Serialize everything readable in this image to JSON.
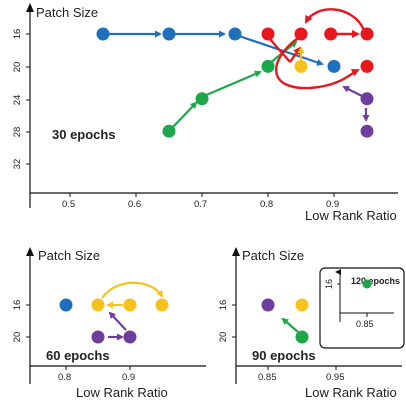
{
  "colors": {
    "blue": "#1f6fbf",
    "red": "#e8171d",
    "green": "#1ca84a",
    "yellow": "#f7c21b",
    "purple": "#6f3d9e",
    "axis": "#111111"
  },
  "panels": {
    "top": {
      "ylabel": "Patch Size",
      "xlabel": "Low Rank Ratio",
      "epochs": "30 epochs",
      "xticks": [
        "0.5",
        "0.6",
        "0.7",
        "0.8",
        "0.9"
      ],
      "yticks": [
        "16",
        "20",
        "24",
        "28",
        "32"
      ]
    },
    "bottom_left": {
      "ylabel": "Patch Size",
      "xlabel": "Low Rank Ratio",
      "epochs": "60 epochs",
      "xticks": [
        "0.8",
        "0.9"
      ],
      "yticks": [
        "16",
        "20"
      ]
    },
    "bottom_right": {
      "ylabel": "Patch Size",
      "xlabel": "Low Rank Ratio",
      "epochs": "90 epochs",
      "xticks": [
        "0.85",
        "0.95"
      ],
      "yticks": [
        "16",
        "20"
      ]
    },
    "inset": {
      "epochs": "120 epochs",
      "xtick": "0.85",
      "ytick": "16"
    }
  },
  "chart_data": [
    {
      "type": "scatter",
      "panel": "30 epochs",
      "xlabel": "Low Rank Ratio",
      "ylabel": "Patch Size",
      "xticks": [
        0.5,
        0.6,
        0.7,
        0.8,
        0.9
      ],
      "yticks": [
        16,
        20,
        24,
        28,
        32
      ],
      "points": [
        {
          "color": "blue",
          "x": 0.55,
          "y": 16
        },
        {
          "color": "blue",
          "x": 0.65,
          "y": 16
        },
        {
          "color": "blue",
          "x": 0.75,
          "y": 16
        },
        {
          "color": "blue",
          "x": 0.9,
          "y": 20
        },
        {
          "color": "red",
          "x": 0.8,
          "y": 16
        },
        {
          "color": "red",
          "x": 0.85,
          "y": 16
        },
        {
          "color": "red",
          "x": 0.895,
          "y": 16
        },
        {
          "color": "red",
          "x": 0.95,
          "y": 16
        },
        {
          "color": "red",
          "x": 0.95,
          "y": 20
        },
        {
          "color": "yellow",
          "x": 0.85,
          "y": 20
        },
        {
          "color": "green",
          "x": 0.65,
          "y": 28
        },
        {
          "color": "green",
          "x": 0.7,
          "y": 24
        },
        {
          "color": "green",
          "x": 0.8,
          "y": 20
        },
        {
          "color": "purple",
          "x": 0.95,
          "y": 24
        },
        {
          "color": "purple",
          "x": 0.95,
          "y": 28
        }
      ]
    },
    {
      "type": "scatter",
      "panel": "60 epochs",
      "xlabel": "Low Rank Ratio",
      "ylabel": "Patch Size",
      "xticks": [
        0.8,
        0.9
      ],
      "yticks": [
        16,
        20
      ],
      "points": [
        {
          "color": "blue",
          "x": 0.8,
          "y": 16
        },
        {
          "color": "yellow",
          "x": 0.85,
          "y": 16
        },
        {
          "color": "yellow",
          "x": 0.9,
          "y": 16
        },
        {
          "color": "yellow",
          "x": 0.95,
          "y": 16
        },
        {
          "color": "purple",
          "x": 0.85,
          "y": 20
        },
        {
          "color": "purple",
          "x": 0.9,
          "y": 20
        }
      ]
    },
    {
      "type": "scatter",
      "panel": "90 epochs",
      "xlabel": "Low Rank Ratio",
      "ylabel": "Patch Size",
      "xticks": [
        0.85,
        0.95
      ],
      "yticks": [
        16,
        20
      ],
      "points": [
        {
          "color": "purple",
          "x": 0.85,
          "y": 16
        },
        {
          "color": "yellow",
          "x": 0.9,
          "y": 16
        },
        {
          "color": "green",
          "x": 0.9,
          "y": 20
        }
      ]
    },
    {
      "type": "scatter",
      "panel": "120 epochs",
      "xticks": [
        0.85
      ],
      "yticks": [
        16
      ],
      "points": [
        {
          "color": "green",
          "x": 0.85,
          "y": 16
        }
      ]
    }
  ]
}
